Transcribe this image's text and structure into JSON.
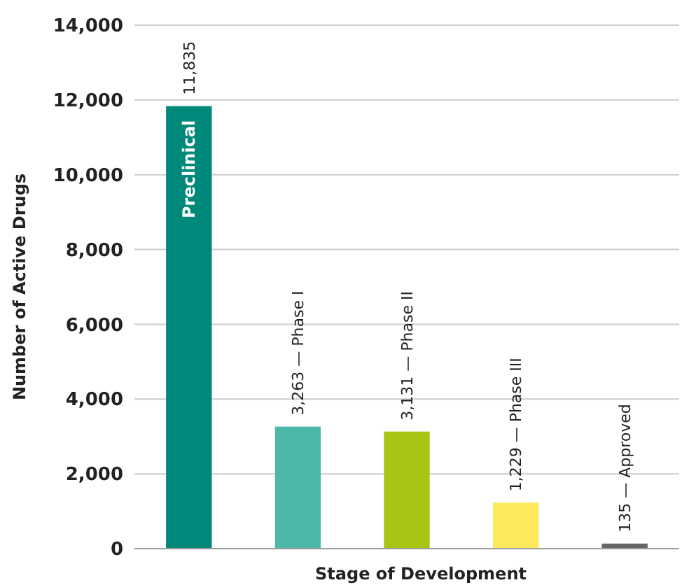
{
  "chart_data": {
    "type": "bar",
    "xlabel": "Stage of Development",
    "ylabel": "Number of Active Drugs",
    "categories": [
      "Preclinical",
      null,
      null,
      null,
      null
    ],
    "values": [
      11835,
      3263,
      3131,
      1229,
      135
    ],
    "colors": [
      "#00897a",
      "#4cb8a8",
      "#a9c414",
      "#fde95b",
      "#666666"
    ],
    "value_labels": [
      "11,835",
      "3,263 — Phase I",
      "3,131 — Phase II",
      "1,229 — Phase III",
      "135 — Approved"
    ],
    "ylim": [
      0,
      14000
    ],
    "yticks": [
      {
        "value": 0,
        "label": "0"
      },
      {
        "value": 2000,
        "label": "2,000"
      },
      {
        "value": 4000,
        "label": "4,000"
      },
      {
        "value": 6000,
        "label": "6,000"
      },
      {
        "value": 8000,
        "label": "8,000"
      },
      {
        "value": 10000,
        "label": "10,000"
      },
      {
        "value": 12000,
        "label": "12,000"
      },
      {
        "value": 14000,
        "label": "14,000"
      }
    ],
    "grid": "y"
  }
}
